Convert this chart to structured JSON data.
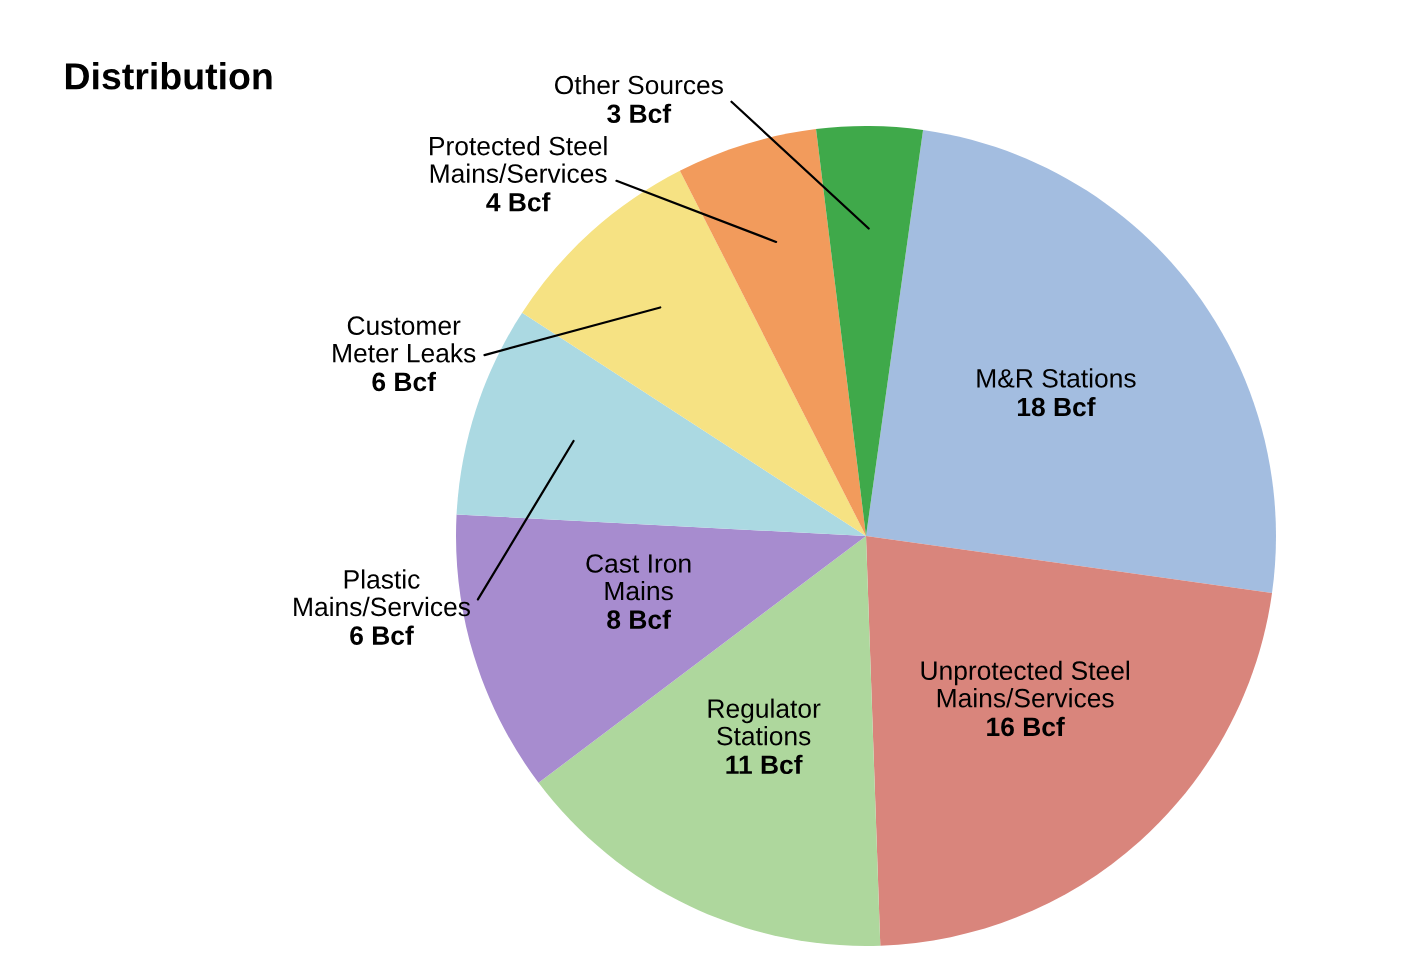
{
  "chart_data": {
    "type": "pie",
    "title": "Distribution",
    "categories": [
      "M&R Stations",
      "Unprotected Steel\nMains/Services",
      "Regulator\nStations",
      "Cast Iron\nMains",
      "Plastic\nMains/Services",
      "Customer\nMeter Leaks",
      "Protected Steel\nMains/Services",
      "Other Sources"
    ],
    "values": [
      18,
      16,
      11,
      8,
      6,
      6,
      4,
      3
    ],
    "value_labels": [
      "18 Bcf",
      "16 Bcf",
      "11 Bcf",
      "8 Bcf",
      "6 Bcf",
      "6 Bcf",
      "4 Bcf",
      "3 Bcf"
    ],
    "colors": [
      "#a3bde0",
      "#d9857c",
      "#aed79d",
      "#a78ccf",
      "#abd9e2",
      "#f6e283",
      "#f29b5c",
      "#3fa94a"
    ]
  }
}
